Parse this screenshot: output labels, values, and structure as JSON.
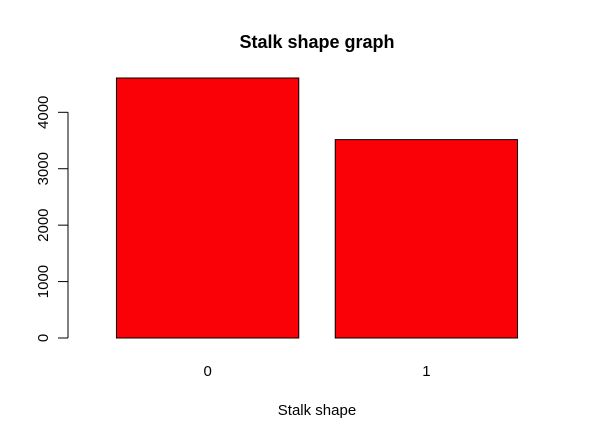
{
  "chart_data": {
    "type": "bar",
    "title": "Stalk shape graph",
    "xlabel": "Stalk shape",
    "ylabel": "",
    "categories": [
      "0",
      "1"
    ],
    "values": [
      4608,
      3516
    ],
    "ylim": [
      0,
      4608
    ],
    "yticks": [
      0,
      1000,
      2000,
      3000,
      4000
    ],
    "bar_color": "#FA0007",
    "bar_border_color": "#000000",
    "grid": false,
    "legend": "none"
  }
}
